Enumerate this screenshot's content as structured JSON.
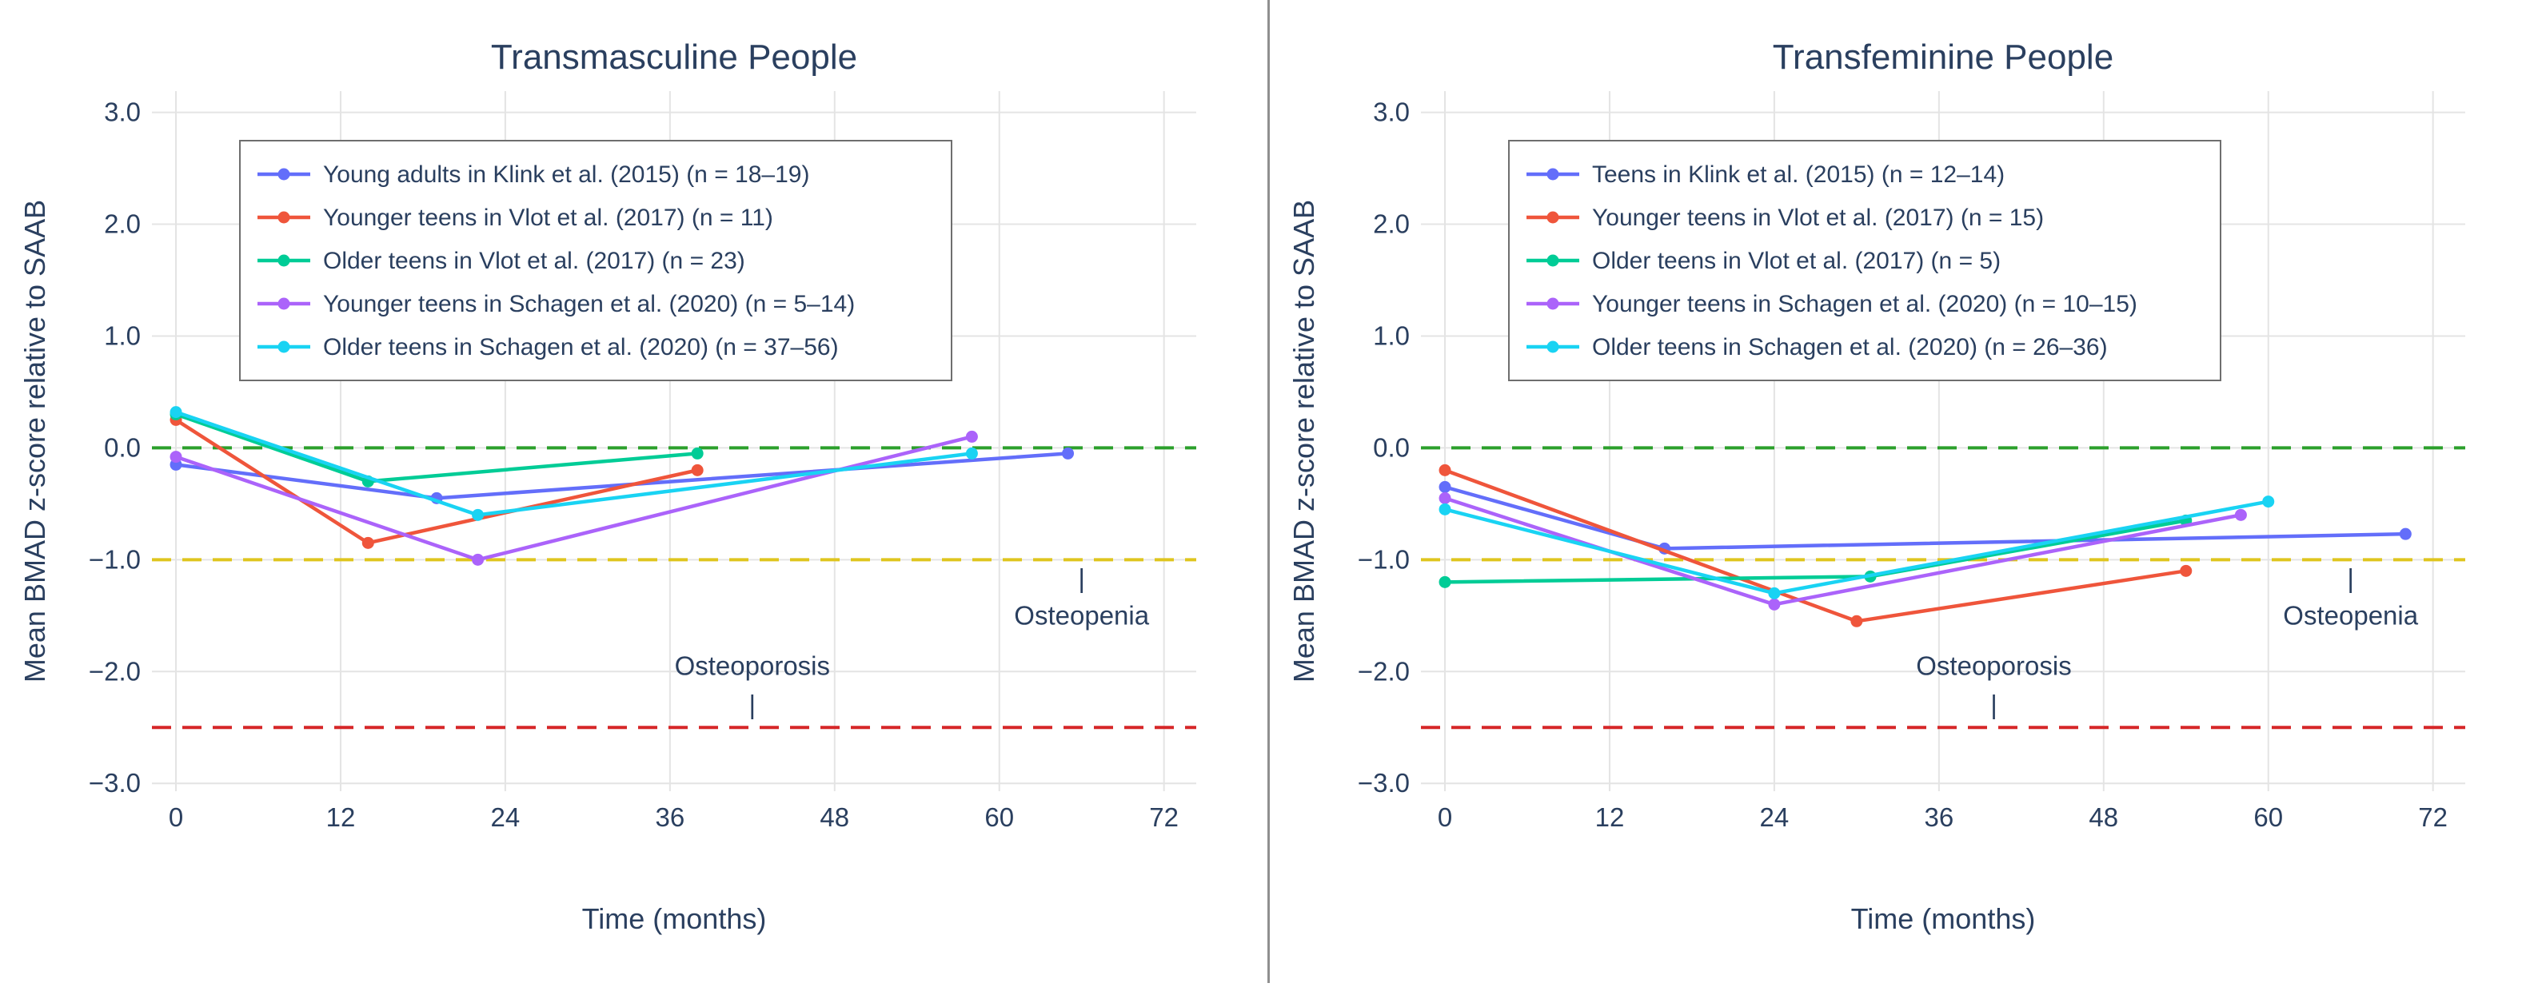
{
  "figure": {
    "background": "#ffffff",
    "text_color": "#2a3f5f",
    "grid_color": "#e4e4e4",
    "legend_border_color": "#6e6e6e",
    "divider_color": "#8f8f8f"
  },
  "chart_data": [
    {
      "type": "line",
      "title": "Transmasculine People",
      "xlabel": "Time (months)",
      "ylabel": "Mean BMAD z-score relative to SAAB",
      "xlim": [
        -1.75,
        74.35
      ],
      "ylim": [
        -3.07,
        3.19
      ],
      "grid": true,
      "legend_position": "top-left",
      "xticks": [
        0,
        12,
        24,
        36,
        48,
        60,
        72
      ],
      "xtick_labels": [
        "0",
        "12",
        "24",
        "36",
        "48",
        "60",
        "72"
      ],
      "yticks": [
        -3,
        -2,
        -1,
        0,
        1,
        2,
        3
      ],
      "ytick_labels": [
        "−3.0",
        "−2.0",
        "−1.0",
        "0.0",
        "1.0",
        "2.0",
        "3.0"
      ],
      "reference_lines": [
        {
          "y": 0.0,
          "color": "#2CA02C",
          "style": "dashed"
        },
        {
          "y": -1.0,
          "color": "#DFC51E",
          "style": "dashed"
        },
        {
          "y": -2.5,
          "color": "#D62728",
          "style": "dashed"
        }
      ],
      "annotations": [
        {
          "text": "Osteoporosis",
          "x": 42,
          "y": -1.95
        },
        {
          "text": "|",
          "x": 42,
          "y": -2.3
        },
        {
          "text": "Osteopenia",
          "x": 66,
          "y": -1.5
        },
        {
          "text": "|",
          "x": 66,
          "y": -1.17
        }
      ],
      "series": [
        {
          "name": "Young adults in Klink et al. (2015) (n = 18–19)",
          "color": "#636EFA",
          "x": [
            0,
            19,
            65
          ],
          "y": [
            -0.15,
            -0.45,
            -0.05
          ]
        },
        {
          "name": "Younger teens in Vlot et al. (2017) (n = 11)",
          "color": "#EF553B",
          "x": [
            0,
            14,
            38
          ],
          "y": [
            0.25,
            -0.85,
            -0.2
          ]
        },
        {
          "name": "Older teens in Vlot et al. (2017) (n = 23)",
          "color": "#00CC96",
          "x": [
            0,
            14,
            38
          ],
          "y": [
            0.3,
            -0.3,
            -0.05
          ]
        },
        {
          "name": "Younger teens in Schagen et al. (2020) (n = 5–14)",
          "color": "#AB63FA",
          "x": [
            0,
            22,
            58
          ],
          "y": [
            -0.08,
            -1.0,
            0.1
          ]
        },
        {
          "name": "Older teens in Schagen et al. (2020) (n = 37–56)",
          "color": "#19D3F3",
          "x": [
            0,
            22,
            58
          ],
          "y": [
            0.32,
            -0.6,
            -0.05
          ]
        }
      ]
    },
    {
      "type": "line",
      "title": "Transfeminine People",
      "xlabel": "Time (months)",
      "ylabel": "Mean BMAD z-score relative to SAAB",
      "xlim": [
        -1.75,
        74.35
      ],
      "ylim": [
        -3.07,
        3.19
      ],
      "grid": true,
      "legend_position": "top-left",
      "xticks": [
        0,
        12,
        24,
        36,
        48,
        60,
        72
      ],
      "xtick_labels": [
        "0",
        "12",
        "24",
        "36",
        "48",
        "60",
        "72"
      ],
      "yticks": [
        -3,
        -2,
        -1,
        0,
        1,
        2,
        3
      ],
      "ytick_labels": [
        "−3.0",
        "−2.0",
        "−1.0",
        "0.0",
        "1.0",
        "2.0",
        "3.0"
      ],
      "reference_lines": [
        {
          "y": 0.0,
          "color": "#2CA02C",
          "style": "dashed"
        },
        {
          "y": -1.0,
          "color": "#DFC51E",
          "style": "dashed"
        },
        {
          "y": -2.5,
          "color": "#D62728",
          "style": "dashed"
        }
      ],
      "annotations": [
        {
          "text": "Osteoporosis",
          "x": 40,
          "y": -1.95
        },
        {
          "text": "|",
          "x": 40,
          "y": -2.3
        },
        {
          "text": "Osteopenia",
          "x": 66,
          "y": -1.5
        },
        {
          "text": "|",
          "x": 66,
          "y": -1.17
        }
      ],
      "series": [
        {
          "name": "Teens in Klink et al. (2015) (n = 12–14)",
          "color": "#636EFA",
          "x": [
            0,
            16,
            70
          ],
          "y": [
            -0.35,
            -0.9,
            -0.77
          ]
        },
        {
          "name": "Younger teens in Vlot et al. (2017) (n = 15)",
          "color": "#EF553B",
          "x": [
            0,
            30,
            54
          ],
          "y": [
            -0.2,
            -1.55,
            -1.1
          ]
        },
        {
          "name": "Older teens in Vlot et al. (2017) (n = 5)",
          "color": "#00CC96",
          "x": [
            0,
            31,
            54
          ],
          "y": [
            -1.2,
            -1.15,
            -0.65
          ]
        },
        {
          "name": "Younger teens in Schagen et al. (2020) (n = 10–15)",
          "color": "#AB63FA",
          "x": [
            0,
            24,
            58
          ],
          "y": [
            -0.45,
            -1.4,
            -0.6
          ]
        },
        {
          "name": "Older teens in Schagen et al. (2020) (n = 26–36)",
          "color": "#19D3F3",
          "x": [
            0,
            24,
            60
          ],
          "y": [
            -0.55,
            -1.3,
            -0.48
          ]
        }
      ]
    }
  ]
}
